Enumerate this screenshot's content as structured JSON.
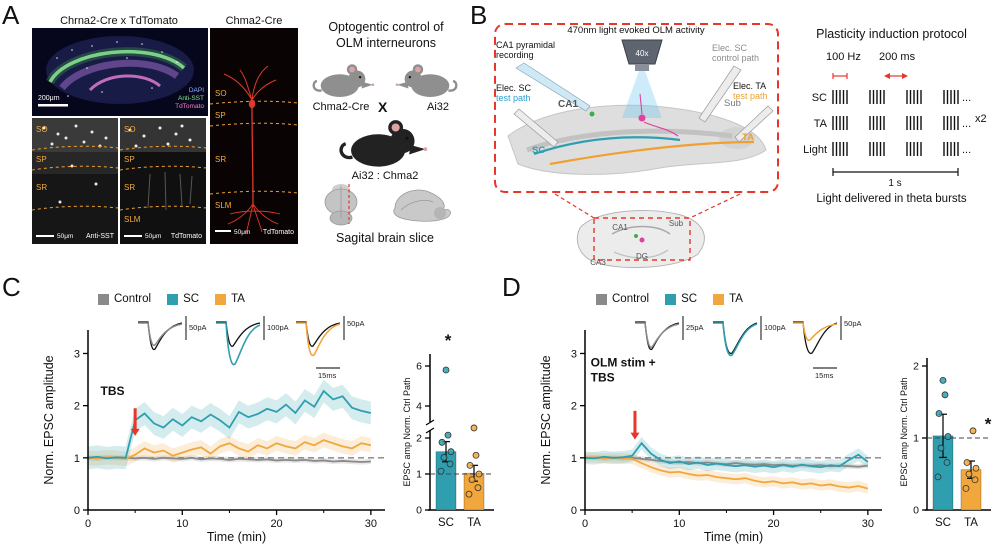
{
  "colors": {
    "control": "#8a8a8a",
    "sc": "#2f9fb0",
    "ta": "#f2a73c",
    "red": "#e8362a",
    "blue_path": "#2f9fd0"
  },
  "figure": {
    "panelA": {
      "label": "A",
      "col1_title": "Chrna2-Cre x TdTomato",
      "col2_title": "Chma2-Cre",
      "main": {
        "scalebar": "200μm",
        "stains": [
          "DAPI",
          "Anti-SST",
          "TdTomato"
        ]
      },
      "sub1": {
        "scalebar": "50μm",
        "caption": "Anti-SST",
        "layers": [
          "SO",
          "SP",
          "SR"
        ]
      },
      "sub2": {
        "scalebar": "50μm",
        "caption": "TdTomato",
        "layers": [
          "SO",
          "SP",
          "SR",
          "SLM"
        ]
      },
      "col2img": {
        "scalebar": "50μm",
        "caption": "TdTomato",
        "layers": [
          "SO",
          "SP",
          "SR",
          "SLM"
        ]
      },
      "cross": {
        "title1": "Optogentic control of",
        "title2": "OLM interneurons",
        "parent1": "Chma2-Cre",
        "x": "X",
        "parent2": "Ai32",
        "offspring": "Ai32 : Chma2",
        "caption": "Sagital brain slice"
      }
    },
    "panelB": {
      "label": "B",
      "box_title": "470nm light evoked OLM activity",
      "rec1": "CA1 pyramidal",
      "rec2": "recording",
      "objective": "40x",
      "elec_ctrl1": "Elec. SC",
      "elec_ctrl2": "control path",
      "elec_ta1": "Elec. TA",
      "elec_ta2": "test path",
      "elec_sc1": "Elec. SC",
      "elec_sc2": "test path",
      "ca1": "CA1",
      "sub": "Sub",
      "ta": "TA",
      "sc": "SC",
      "mini": {
        "ca1": "CA1",
        "sub": "Sub",
        "dg": "DG",
        "ca3": "CA3"
      },
      "protocol": {
        "title": "Plasticity induction protocol",
        "freq": "100 Hz",
        "gap": "200 ms",
        "rows": [
          "SC",
          "TA",
          "Light"
        ],
        "ellipsis": "...",
        "repeat": "x2",
        "timebar": "1 s",
        "caption": "Light delivered in theta bursts"
      }
    },
    "panelC": {
      "label": "C",
      "legend": [
        "Control",
        "SC",
        "TA"
      ],
      "inset_scales": [
        "50pA",
        "100pA",
        "50pA",
        "15ms"
      ]
    },
    "panelD": {
      "label": "D",
      "legend": [
        "Control",
        "SC",
        "TA"
      ],
      "inset_scales": [
        "25pA",
        "100pA",
        "50pA",
        "15ms"
      ]
    }
  },
  "chart_data": [
    {
      "id": "C_line",
      "type": "line",
      "title": "Panel C: normalized EPSC amplitude time course (TBS only)",
      "xlabel": "Time (min)",
      "ylabel": "Norm. EPSC amplitude",
      "xlim": [
        0,
        31.5
      ],
      "ylim": [
        0,
        3.45
      ],
      "xticks": [
        0,
        10,
        20,
        30
      ],
      "xminor": [
        5,
        15,
        25
      ],
      "yticks": [
        0,
        1,
        2,
        3
      ],
      "x": [
        0,
        1,
        2,
        3,
        4,
        5,
        6,
        7,
        8,
        9,
        10,
        11,
        12,
        13,
        14,
        15,
        16,
        17,
        18,
        19,
        20,
        21,
        22,
        23,
        24,
        25,
        26,
        27,
        28,
        29,
        30
      ],
      "series": [
        {
          "name": "Control",
          "color": "#8a8a8a",
          "err": 0.05,
          "values": [
            1.0,
            0.99,
            1.01,
            1.0,
            1.0,
            0.99,
            1.0,
            0.98,
            1.0,
            0.99,
            0.98,
            1.0,
            0.97,
            0.99,
            0.98,
            0.96,
            0.98,
            0.97,
            0.96,
            0.97,
            0.95,
            0.96,
            0.95,
            0.96,
            0.94,
            0.95,
            0.93,
            0.94,
            0.93,
            0.92,
            0.93
          ]
        },
        {
          "name": "TA",
          "color": "#f2a73c",
          "err": 0.14,
          "values": [
            1.0,
            0.99,
            1.01,
            1.0,
            0.98,
            1.06,
            1.18,
            1.1,
            1.14,
            1.04,
            1.1,
            1.16,
            1.2,
            1.08,
            1.22,
            1.28,
            1.18,
            1.12,
            1.24,
            1.18,
            1.28,
            1.22,
            1.18,
            1.3,
            1.24,
            1.34,
            1.28,
            1.22,
            1.18,
            1.28,
            1.24
          ]
        },
        {
          "name": "SC",
          "color": "#2f9fb0",
          "err": 0.22,
          "values": [
            1.0,
            1.02,
            0.99,
            1.01,
            1.0,
            1.72,
            1.85,
            1.66,
            1.58,
            1.74,
            1.62,
            1.78,
            1.7,
            1.83,
            1.72,
            1.58,
            1.88,
            1.78,
            1.84,
            1.94,
            1.88,
            2.02,
            1.86,
            2.1,
            1.98,
            2.28,
            2.12,
            2.18,
            1.96,
            1.9,
            1.86
          ]
        }
      ],
      "ref_y": 1,
      "annotation": {
        "arrow_x": 5,
        "arrow_from": 1.95,
        "arrow_to": 1.42,
        "label_x": 2.6,
        "label_y": 2.2,
        "anchor": "middle",
        "label_lines": [
          "TBS"
        ]
      }
    },
    {
      "id": "C_bar",
      "type": "bar",
      "ylabel": "EPSC amp Norm. Ctrl Path",
      "categories": [
        "SC",
        "TA"
      ],
      "values": [
        1.62,
        1.02
      ],
      "errors": [
        0.28,
        0.22
      ],
      "colors": [
        "#2f9fb0",
        "#f2a73c"
      ],
      "points": [
        [
          1.08,
          1.28,
          1.46,
          1.62,
          1.88,
          2.08,
          5.8
        ],
        [
          0.44,
          0.62,
          0.84,
          1.0,
          1.24,
          1.52,
          2.28
        ]
      ],
      "yticks": [
        0,
        1,
        2
      ],
      "yticks_upper": [
        4,
        6
      ],
      "axis_break": true,
      "ref_y": 1,
      "sig": {
        "label": "*",
        "cat": 0,
        "dx": 2,
        "v": 7.0
      }
    },
    {
      "id": "D_line",
      "type": "line",
      "title": "Panel D: normalized EPSC amplitude time course (OLM stim + TBS)",
      "xlabel": "Time (min)",
      "ylabel": "Norm. EPSC amplitude",
      "xlim": [
        0,
        31.5
      ],
      "ylim": [
        0,
        3.45
      ],
      "xticks": [
        0,
        10,
        20,
        30
      ],
      "xminor": [
        5,
        15,
        25
      ],
      "yticks": [
        0,
        1,
        2,
        3
      ],
      "x": [
        0,
        1,
        2,
        3,
        4,
        5,
        6,
        7,
        8,
        9,
        10,
        11,
        12,
        13,
        14,
        15,
        16,
        17,
        18,
        19,
        20,
        21,
        22,
        23,
        24,
        25,
        26,
        27,
        28,
        29,
        30
      ],
      "series": [
        {
          "name": "Control",
          "color": "#8a8a8a",
          "err": 0.05,
          "values": [
            1.0,
            1.01,
            0.99,
            1.0,
            0.99,
            1.0,
            0.98,
            0.96,
            0.94,
            0.92,
            0.91,
            0.92,
            0.9,
            0.91,
            0.89,
            0.88,
            0.9,
            0.88,
            0.87,
            0.88,
            0.86,
            0.87,
            0.85,
            0.86,
            0.85,
            0.86,
            0.84,
            0.85,
            0.84,
            0.83,
            0.85
          ]
        },
        {
          "name": "TA",
          "color": "#f2a73c",
          "err": 0.1,
          "values": [
            1.0,
            1.01,
            0.99,
            1.0,
            0.99,
            0.98,
            0.9,
            0.82,
            0.76,
            0.72,
            0.73,
            0.69,
            0.66,
            0.67,
            0.63,
            0.61,
            0.59,
            0.61,
            0.56,
            0.53,
            0.55,
            0.51,
            0.53,
            0.49,
            0.51,
            0.47,
            0.49,
            0.45,
            0.43,
            0.46,
            0.41
          ]
        },
        {
          "name": "SC",
          "color": "#2f9fb0",
          "err": 0.12,
          "values": [
            1.0,
            0.99,
            1.02,
            1.0,
            1.01,
            1.04,
            1.28,
            1.08,
            0.96,
            0.9,
            0.93,
            0.88,
            0.91,
            0.86,
            0.89,
            0.86,
            0.84,
            0.86,
            0.83,
            0.85,
            0.82,
            0.86,
            0.83,
            0.87,
            0.84,
            0.82,
            0.86,
            0.84,
            0.96,
            1.06,
            0.92
          ]
        }
      ],
      "ref_y": 1,
      "annotation": {
        "arrow_x": 5.3,
        "arrow_from": 1.9,
        "arrow_to": 1.35,
        "label_x": 0.6,
        "label_y": 2.75,
        "anchor": "start",
        "label_lines": [
          "OLM stim +",
          "TBS"
        ]
      }
    },
    {
      "id": "D_bar",
      "type": "bar",
      "ylabel": "EPSC amp Norm. Ctrl Path",
      "categories": [
        "SC",
        "TA"
      ],
      "values": [
        1.03,
        0.56
      ],
      "errors": [
        0.3,
        0.12
      ],
      "colors": [
        "#2f9fb0",
        "#f2a73c"
      ],
      "points": [
        [
          0.46,
          0.66,
          0.86,
          1.02,
          1.34,
          1.6,
          1.8
        ],
        [
          0.3,
          0.42,
          0.5,
          0.58,
          0.66,
          1.1
        ]
      ],
      "yticks": [
        0,
        1,
        2
      ],
      "axis_break": false,
      "ref_y": 1,
      "sig": {
        "label": "*",
        "cat": 1,
        "dx": 17,
        "v": 1.12
      }
    }
  ]
}
